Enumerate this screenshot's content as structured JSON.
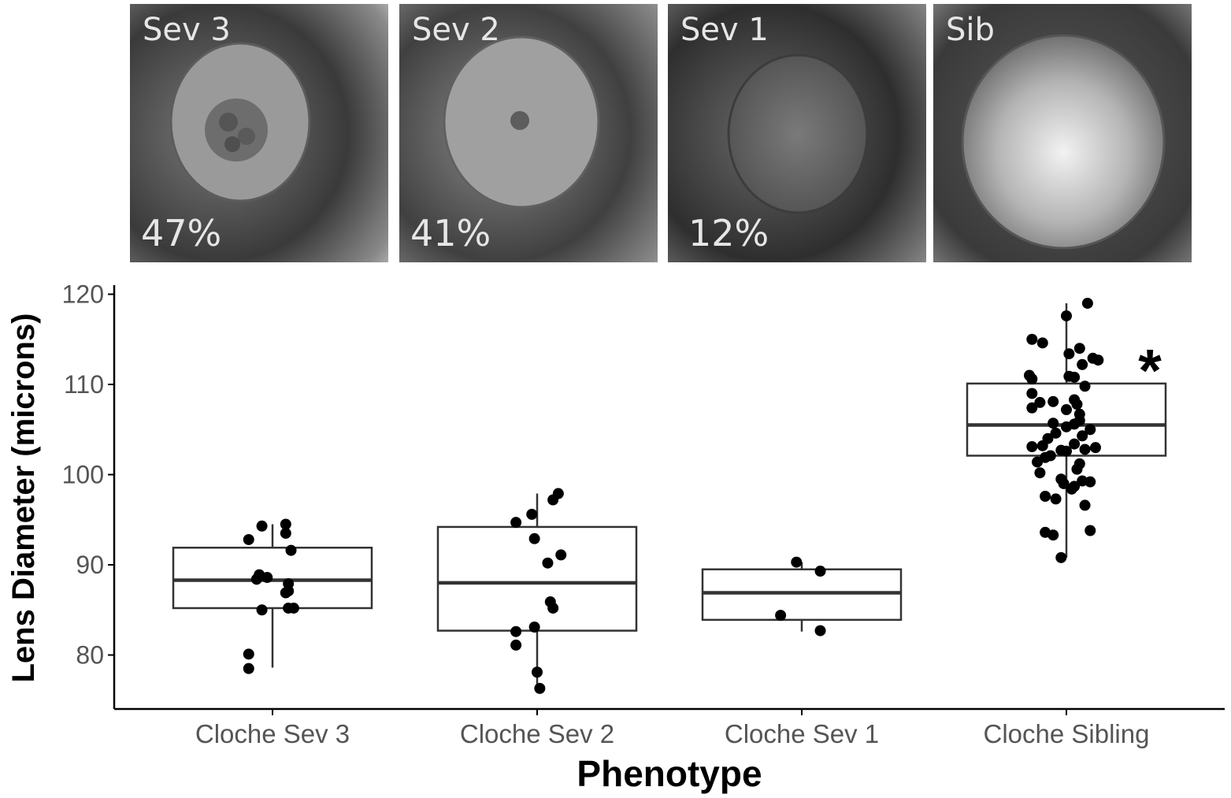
{
  "panels": [
    {
      "label": "Sev 3",
      "percent": "47%"
    },
    {
      "label": "Sev 2",
      "percent": "41%"
    },
    {
      "label": "Sev 1",
      "percent": "12%"
    },
    {
      "label": "Sib",
      "percent": ""
    }
  ],
  "chart_data": {
    "type": "boxplot",
    "xlabel": "Phenotype",
    "ylabel": "Lens Diameter (microns)",
    "ylim": [
      74,
      121
    ],
    "yticks": [
      80,
      90,
      100,
      110,
      120
    ],
    "categories": [
      "Cloche Sev 3",
      "Cloche Sev 2",
      "Cloche Sev 1",
      "Cloche Sibling"
    ],
    "boxes": [
      {
        "q1": 85.2,
        "median": 88.3,
        "q3": 91.9,
        "whisker_low": 78.6,
        "whisker_high": 94.5
      },
      {
        "q1": 82.7,
        "median": 88.0,
        "q3": 94.2,
        "whisker_low": 76.3,
        "whisker_high": 97.9
      },
      {
        "q1": 83.9,
        "median": 86.9,
        "q3": 89.5,
        "whisker_low": 82.6,
        "whisker_high": 90.3
      },
      {
        "q1": 102.1,
        "median": 105.5,
        "q3": 110.1,
        "whisker_low": 90.8,
        "whisker_high": 119.0
      }
    ],
    "points": [
      [
        {
          "dx": -0.09,
          "y": 92.8
        },
        {
          "dx": -0.04,
          "y": 94.3
        },
        {
          "dx": 0.05,
          "y": 94.5
        },
        {
          "dx": 0.05,
          "y": 93.5
        },
        {
          "dx": 0.07,
          "y": 91.6
        },
        {
          "dx": -0.05,
          "y": 88.9
        },
        {
          "dx": -0.06,
          "y": 88.4
        },
        {
          "dx": -0.02,
          "y": 88.6
        },
        {
          "dx": 0.06,
          "y": 87.9
        },
        {
          "dx": 0.06,
          "y": 87.1
        },
        {
          "dx": 0.05,
          "y": 86.9
        },
        {
          "dx": -0.04,
          "y": 85.0
        },
        {
          "dx": 0.06,
          "y": 85.2
        },
        {
          "dx": 0.08,
          "y": 85.2
        },
        {
          "dx": -0.09,
          "y": 80.1
        },
        {
          "dx": -0.09,
          "y": 78.5
        }
      ],
      [
        {
          "dx": -0.08,
          "y": 94.7
        },
        {
          "dx": -0.02,
          "y": 95.6
        },
        {
          "dx": 0.06,
          "y": 97.2
        },
        {
          "dx": 0.08,
          "y": 97.9
        },
        {
          "dx": -0.01,
          "y": 92.9
        },
        {
          "dx": 0.09,
          "y": 91.1
        },
        {
          "dx": 0.04,
          "y": 90.2
        },
        {
          "dx": 0.05,
          "y": 85.9
        },
        {
          "dx": 0.06,
          "y": 85.2
        },
        {
          "dx": -0.08,
          "y": 82.6
        },
        {
          "dx": -0.01,
          "y": 83.1
        },
        {
          "dx": -0.08,
          "y": 81.1
        },
        {
          "dx": 0.0,
          "y": 78.1
        },
        {
          "dx": 0.01,
          "y": 76.3
        }
      ],
      [
        {
          "dx": -0.02,
          "y": 90.3
        },
        {
          "dx": 0.07,
          "y": 89.3
        },
        {
          "dx": -0.08,
          "y": 84.4
        },
        {
          "dx": 0.07,
          "y": 82.7
        }
      ],
      [
        {
          "dx": 0.08,
          "y": 119.0
        },
        {
          "dx": -0.13,
          "y": 115.0
        },
        {
          "dx": -0.09,
          "y": 114.6
        },
        {
          "dx": 0.0,
          "y": 117.6
        },
        {
          "dx": 0.01,
          "y": 113.4
        },
        {
          "dx": 0.05,
          "y": 114.0
        },
        {
          "dx": 0.1,
          "y": 112.9
        },
        {
          "dx": 0.06,
          "y": 112.2
        },
        {
          "dx": 0.12,
          "y": 112.7
        },
        {
          "dx": -0.14,
          "y": 111.0
        },
        {
          "dx": -0.13,
          "y": 110.6
        },
        {
          "dx": 0.01,
          "y": 110.9
        },
        {
          "dx": 0.03,
          "y": 110.8
        },
        {
          "dx": 0.07,
          "y": 109.8
        },
        {
          "dx": -0.13,
          "y": 109.0
        },
        {
          "dx": -0.05,
          "y": 108.1
        },
        {
          "dx": 0.03,
          "y": 108.3
        },
        {
          "dx": 0.04,
          "y": 107.8
        },
        {
          "dx": -0.13,
          "y": 107.4
        },
        {
          "dx": -0.1,
          "y": 108.0
        },
        {
          "dx": 0.0,
          "y": 107.2
        },
        {
          "dx": 0.05,
          "y": 106.7
        },
        {
          "dx": 0.05,
          "y": 106.0
        },
        {
          "dx": -0.05,
          "y": 105.7
        },
        {
          "dx": 0.03,
          "y": 105.6
        },
        {
          "dx": 0.09,
          "y": 105.0
        },
        {
          "dx": 0.0,
          "y": 105.3
        },
        {
          "dx": -0.04,
          "y": 104.6
        },
        {
          "dx": 0.06,
          "y": 104.3
        },
        {
          "dx": -0.07,
          "y": 104.0
        },
        {
          "dx": -0.13,
          "y": 103.1
        },
        {
          "dx": -0.09,
          "y": 103.2
        },
        {
          "dx": 0.03,
          "y": 103.4
        },
        {
          "dx": 0.07,
          "y": 102.8
        },
        {
          "dx": 0.11,
          "y": 103.0
        },
        {
          "dx": -0.02,
          "y": 102.7
        },
        {
          "dx": 0.0,
          "y": 102.6
        },
        {
          "dx": -0.06,
          "y": 102.1
        },
        {
          "dx": -0.08,
          "y": 101.9
        },
        {
          "dx": -0.11,
          "y": 101.4
        },
        {
          "dx": 0.05,
          "y": 101.2
        },
        {
          "dx": 0.04,
          "y": 100.6
        },
        {
          "dx": -0.1,
          "y": 100.2
        },
        {
          "dx": -0.02,
          "y": 99.5
        },
        {
          "dx": 0.06,
          "y": 99.3
        },
        {
          "dx": 0.09,
          "y": 99.2
        },
        {
          "dx": -0.01,
          "y": 99.0
        },
        {
          "dx": 0.03,
          "y": 98.7
        },
        {
          "dx": 0.02,
          "y": 98.4
        },
        {
          "dx": -0.08,
          "y": 97.6
        },
        {
          "dx": -0.04,
          "y": 97.3
        },
        {
          "dx": 0.07,
          "y": 96.6
        },
        {
          "dx": -0.08,
          "y": 93.6
        },
        {
          "dx": -0.05,
          "y": 93.3
        },
        {
          "dx": 0.09,
          "y": 93.8
        },
        {
          "dx": -0.02,
          "y": 90.8
        }
      ]
    ],
    "annotations": [
      {
        "text": "*",
        "category": "Cloche Sibling",
        "y": 113
      }
    ]
  }
}
